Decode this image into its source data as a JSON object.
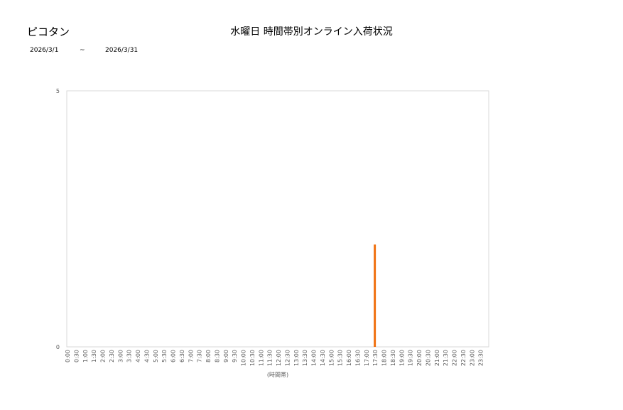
{
  "header": {
    "name": "ピコタン",
    "title": "水曜日 時間帯別オンライン入荷状況",
    "date_from": "2026/3/1",
    "tilde": "~",
    "date_to": "2026/3/31"
  },
  "chart_data": {
    "type": "bar",
    "title": "水曜日 時間帯別オンライン入荷状況",
    "xlabel": "(時間帯)",
    "ylabel": "",
    "ylim": [
      0,
      5
    ],
    "yticks": [
      "0",
      "5"
    ],
    "grid": false,
    "categories": [
      "0:00",
      "0:30",
      "1:00",
      "1:30",
      "2:00",
      "2:30",
      "3:00",
      "3:30",
      "4:00",
      "4:30",
      "5:00",
      "5:30",
      "6:00",
      "6:30",
      "7:00",
      "7:30",
      "8:00",
      "8:30",
      "9:00",
      "9:30",
      "10:00",
      "10:30",
      "11:00",
      "11:30",
      "12:00",
      "12:30",
      "13:00",
      "13:30",
      "14:00",
      "14:30",
      "15:00",
      "15:30",
      "16:00",
      "16:30",
      "17:00",
      "17:30",
      "18:00",
      "18:30",
      "19:00",
      "19:30",
      "20:00",
      "20:30",
      "21:00",
      "21:30",
      "22:00",
      "22:30",
      "23:00",
      "23:30"
    ],
    "values": [
      0,
      0,
      0,
      0,
      0,
      0,
      0,
      0,
      0,
      0,
      0,
      0,
      0,
      0,
      0,
      0,
      0,
      0,
      0,
      0,
      0,
      0,
      0,
      0,
      0,
      0,
      0,
      0,
      0,
      0,
      0,
      0,
      0,
      0,
      0,
      2,
      0,
      0,
      0,
      0,
      0,
      0,
      0,
      0,
      0,
      0,
      0,
      0
    ],
    "color": "#f07010"
  }
}
